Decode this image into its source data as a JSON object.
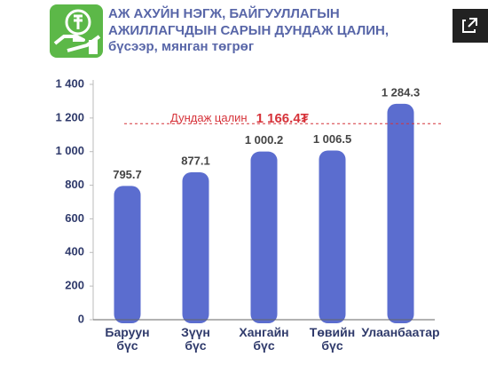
{
  "chart_data": {
    "type": "bar",
    "title": "АЖ АХУЙН НЭГЖ, БАЙГУУЛЛАГЫН АЖИЛЛАГЧДЫН САРЫН ДУНДАЖ ЦАЛИН,",
    "subtitle": "бүсээр, мянган төгрөг",
    "categories": [
      "Баруун бүс",
      "Зүүн бүс",
      "Хангайн бүс",
      "Төвийн бүс",
      "Улаанбаатар"
    ],
    "values": [
      795.7,
      877.1,
      1000.2,
      1006.5,
      1284.3
    ],
    "value_labels": [
      "795.7",
      "877.1",
      "1 000.2",
      "1 006.5",
      "1 284.3"
    ],
    "color": "#5b6dcf",
    "ylim": [
      0,
      1400
    ],
    "yticks": [
      0,
      200,
      400,
      600,
      800,
      {
        "value": 1000,
        "label": "1 000"
      },
      {
        "value": 1200,
        "label": "1 200"
      },
      {
        "value": 1400,
        "label": "1 400"
      }
    ],
    "average": {
      "label": "Дундаж цалин",
      "value": 1166.4,
      "value_label": "1 166.4₮",
      "color": "#d6333a"
    }
  }
}
